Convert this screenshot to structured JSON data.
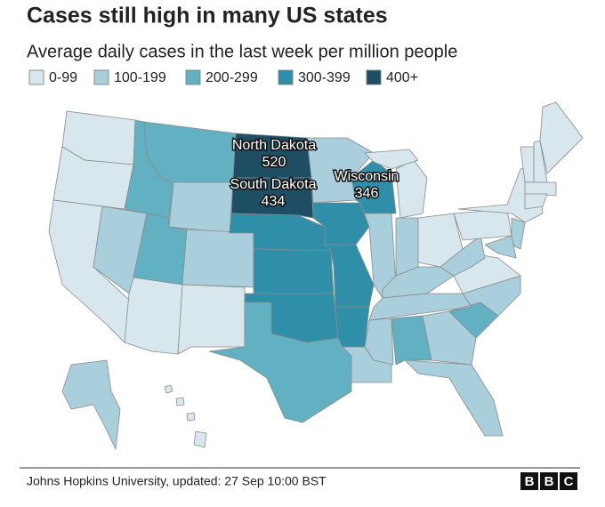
{
  "header": {
    "title": "Cases still high in many US states",
    "subtitle": "Average daily cases in the last week per million people"
  },
  "legend": [
    {
      "label": "0-99",
      "color": "#d7e7ed"
    },
    {
      "label": "100-199",
      "color": "#a9cfdc"
    },
    {
      "label": "200-299",
      "color": "#62b1c3"
    },
    {
      "label": "300-399",
      "color": "#2f8fa9"
    },
    {
      "label": "400+",
      "color": "#1d4e64"
    }
  ],
  "annotations": [
    {
      "state": "North Dakota",
      "value": "520"
    },
    {
      "state": "South Dakota",
      "value": "434"
    },
    {
      "state": "Wisconsin",
      "value": "346"
    }
  ],
  "footer": {
    "source": "Johns Hopkins University, updated: 27 Sep 10:00 BST",
    "logo": [
      "B",
      "B",
      "C"
    ]
  }
}
